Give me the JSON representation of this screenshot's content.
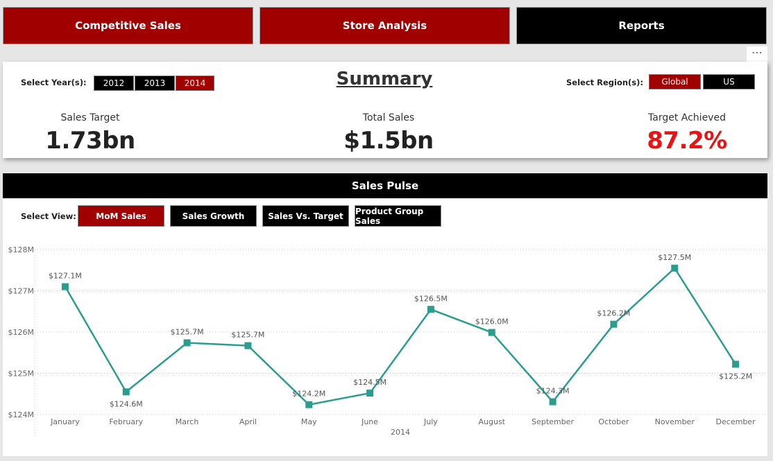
{
  "nav": {
    "competitive_sales": "Competitive Sales",
    "store_analysis": "Store Analysis",
    "reports": "Reports"
  },
  "more_icon": "⋯",
  "summary": {
    "title": "Summary",
    "year_label": "Select Year(s):",
    "years": [
      "2012",
      "2013",
      "2014"
    ],
    "selected_year": "2014",
    "region_label": "Select Region(s):",
    "regions": [
      "Global",
      "US"
    ],
    "selected_region": "Global",
    "kpis": {
      "sales_target_label": "Sales Target",
      "sales_target_value": "1.73bn",
      "total_sales_label": "Total Sales",
      "total_sales_value": "$1.5bn",
      "target_achieved_label": "Target Achieved",
      "target_achieved_value": "87.2%"
    },
    "colors": {
      "accent": "#a00000",
      "achieved": "#ee1111"
    }
  },
  "pulse": {
    "title": "Sales Pulse",
    "view_label": "Select View:",
    "views": [
      "MoM Sales",
      "Sales Growth",
      "Sales Vs. Target",
      "Product Group Sales"
    ],
    "selected_view": "MoM Sales"
  },
  "chart_data": {
    "type": "line",
    "categories": [
      "January",
      "February",
      "March",
      "April",
      "May",
      "June",
      "July",
      "August",
      "September",
      "October",
      "November",
      "December"
    ],
    "values": [
      127.1,
      124.55,
      125.74,
      125.67,
      124.24,
      124.52,
      126.55,
      125.99,
      124.31,
      126.19,
      127.55,
      125.22
    ],
    "data_labels": [
      "$127.1M",
      "$124.6M",
      "$125.7M",
      "$125.7M",
      "$124.2M",
      "$124.5M",
      "$126.5M",
      "$126.0M",
      "$124.3M",
      "$126.2M",
      "$127.5M",
      "$125.2M"
    ],
    "ylim": [
      124,
      128
    ],
    "yticks": [
      124,
      125,
      126,
      127,
      128
    ],
    "ytick_labels": [
      "$124M",
      "$125M",
      "$126M",
      "$127M",
      "$128M"
    ],
    "xlabel": "2014",
    "ylabel": "",
    "grid": true,
    "line_color": "#2a9d8f"
  }
}
